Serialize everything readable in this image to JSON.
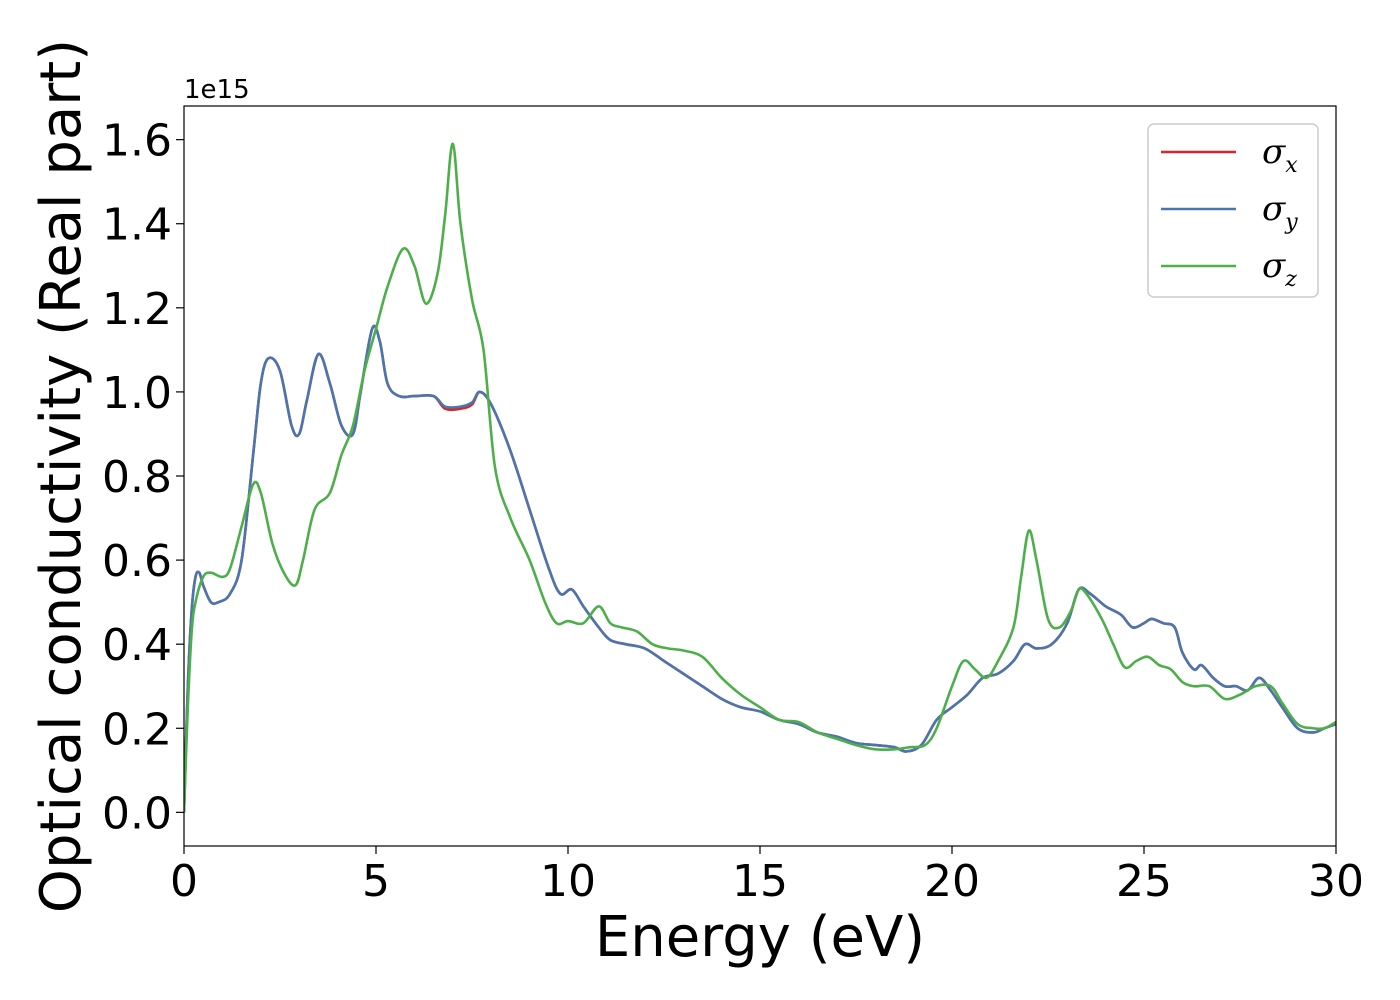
{
  "chart_data": {
    "type": "line",
    "xlabel": "Energy (eV)",
    "ylabel": "Optical conductivity (Real part)",
    "y_offset_label": "1e15",
    "xlim": [
      0,
      30
    ],
    "ylim": [
      -0.08,
      1.68
    ],
    "xticks": [
      0,
      5,
      10,
      15,
      20,
      25,
      30
    ],
    "xtick_labels": [
      "0",
      "5",
      "10",
      "15",
      "20",
      "25",
      "30"
    ],
    "yticks": [
      0.0,
      0.2,
      0.4,
      0.6,
      0.8,
      1.0,
      1.2,
      1.4,
      1.6
    ],
    "ytick_labels": [
      "0.0",
      "0.2",
      "0.4",
      "0.6",
      "0.8",
      "1.0",
      "1.2",
      "1.4",
      "1.6"
    ],
    "grid": false,
    "legend_position": "top-right",
    "series": [
      {
        "name": "σx",
        "legend_symbol": "σ",
        "legend_sub": "x",
        "color": "#d62728",
        "x": [
          0,
          0.1,
          0.2,
          0.3,
          0.4,
          0.5,
          0.7,
          0.9,
          1.2,
          1.5,
          1.8,
          2.0,
          2.2,
          2.5,
          2.8,
          3.0,
          3.2,
          3.5,
          3.8,
          4.1,
          4.4,
          4.6,
          4.9,
          5.1,
          5.3,
          5.6,
          6.0,
          6.5,
          6.8,
          7.2,
          7.5,
          7.7,
          8.0,
          8.5,
          9.0,
          9.5,
          9.8,
          10.1,
          10.4,
          10.8,
          11.1,
          11.5,
          12.0,
          12.5,
          13.0,
          13.5,
          14.0,
          14.5,
          15.0,
          15.5,
          16.0,
          16.5,
          17.0,
          17.5,
          18.0,
          18.5,
          18.8,
          19.2,
          19.6,
          20.0,
          20.4,
          20.8,
          21.2,
          21.6,
          21.9,
          22.2,
          22.6,
          23.0,
          23.3,
          23.6,
          24.0,
          24.4,
          24.7,
          25.0,
          25.2,
          25.5,
          25.8,
          26.0,
          26.3,
          26.5,
          26.8,
          27.1,
          27.4,
          27.7,
          28.0,
          28.3,
          28.6,
          29.0,
          29.4,
          29.7,
          30.0
        ],
        "values": [
          0.0,
          0.3,
          0.48,
          0.56,
          0.57,
          0.54,
          0.5,
          0.5,
          0.52,
          0.6,
          0.85,
          1.02,
          1.08,
          1.05,
          0.92,
          0.9,
          0.98,
          1.09,
          1.02,
          0.92,
          0.9,
          1.0,
          1.15,
          1.12,
          1.02,
          0.99,
          0.99,
          0.99,
          0.96,
          0.96,
          0.97,
          1.0,
          0.97,
          0.86,
          0.72,
          0.58,
          0.52,
          0.53,
          0.49,
          0.44,
          0.41,
          0.4,
          0.39,
          0.36,
          0.33,
          0.3,
          0.27,
          0.25,
          0.24,
          0.22,
          0.21,
          0.19,
          0.18,
          0.165,
          0.16,
          0.155,
          0.145,
          0.16,
          0.22,
          0.25,
          0.28,
          0.32,
          0.33,
          0.36,
          0.4,
          0.39,
          0.4,
          0.45,
          0.53,
          0.52,
          0.49,
          0.47,
          0.44,
          0.45,
          0.46,
          0.45,
          0.44,
          0.38,
          0.34,
          0.35,
          0.32,
          0.3,
          0.3,
          0.29,
          0.32,
          0.29,
          0.25,
          0.2,
          0.19,
          0.2,
          0.21
        ]
      },
      {
        "name": "σy",
        "legend_symbol": "σ",
        "legend_sub": "y",
        "color": "#4a76b0",
        "x": [
          0,
          0.1,
          0.2,
          0.3,
          0.4,
          0.5,
          0.7,
          0.9,
          1.2,
          1.5,
          1.8,
          2.0,
          2.2,
          2.5,
          2.8,
          3.0,
          3.2,
          3.5,
          3.8,
          4.1,
          4.4,
          4.6,
          4.9,
          5.1,
          5.3,
          5.6,
          6.0,
          6.5,
          6.8,
          7.2,
          7.5,
          7.7,
          8.0,
          8.5,
          9.0,
          9.5,
          9.8,
          10.1,
          10.4,
          10.8,
          11.1,
          11.5,
          12.0,
          12.5,
          13.0,
          13.5,
          14.0,
          14.5,
          15.0,
          15.5,
          16.0,
          16.5,
          17.0,
          17.5,
          18.0,
          18.5,
          18.8,
          19.2,
          19.6,
          20.0,
          20.4,
          20.8,
          21.2,
          21.6,
          21.9,
          22.2,
          22.6,
          23.0,
          23.3,
          23.6,
          24.0,
          24.4,
          24.7,
          25.0,
          25.2,
          25.5,
          25.8,
          26.0,
          26.3,
          26.5,
          26.8,
          27.1,
          27.4,
          27.7,
          28.0,
          28.3,
          28.6,
          29.0,
          29.4,
          29.7,
          30.0
        ],
        "values": [
          0.0,
          0.3,
          0.48,
          0.56,
          0.57,
          0.54,
          0.5,
          0.5,
          0.52,
          0.6,
          0.85,
          1.02,
          1.08,
          1.05,
          0.92,
          0.9,
          0.98,
          1.09,
          1.02,
          0.92,
          0.9,
          1.0,
          1.15,
          1.12,
          1.02,
          0.99,
          0.99,
          0.99,
          0.965,
          0.965,
          0.975,
          1.0,
          0.97,
          0.86,
          0.72,
          0.58,
          0.52,
          0.53,
          0.49,
          0.44,
          0.41,
          0.4,
          0.39,
          0.36,
          0.33,
          0.3,
          0.27,
          0.25,
          0.24,
          0.22,
          0.21,
          0.19,
          0.18,
          0.165,
          0.16,
          0.155,
          0.145,
          0.16,
          0.22,
          0.25,
          0.28,
          0.32,
          0.33,
          0.36,
          0.4,
          0.39,
          0.4,
          0.45,
          0.53,
          0.52,
          0.49,
          0.47,
          0.44,
          0.45,
          0.46,
          0.45,
          0.44,
          0.38,
          0.34,
          0.35,
          0.32,
          0.3,
          0.3,
          0.29,
          0.32,
          0.29,
          0.25,
          0.2,
          0.19,
          0.2,
          0.21
        ]
      },
      {
        "name": "σz",
        "legend_symbol": "σ",
        "legend_sub": "z",
        "color": "#4daf4a",
        "x": [
          0,
          0.1,
          0.2,
          0.3,
          0.5,
          0.7,
          1.0,
          1.2,
          1.5,
          1.8,
          2.0,
          2.3,
          2.6,
          2.9,
          3.1,
          3.4,
          3.8,
          4.1,
          4.4,
          4.7,
          5.0,
          5.3,
          5.7,
          6.0,
          6.3,
          6.6,
          6.8,
          7.0,
          7.2,
          7.5,
          7.8,
          8.1,
          8.5,
          9.0,
          9.4,
          9.7,
          10.0,
          10.4,
          10.8,
          11.1,
          11.4,
          11.8,
          12.2,
          12.6,
          13.0,
          13.5,
          14.0,
          14.5,
          15.0,
          15.5,
          16.0,
          16.5,
          17.0,
          17.5,
          18.0,
          18.5,
          18.9,
          19.3,
          19.6,
          20.0,
          20.3,
          20.6,
          20.9,
          21.2,
          21.6,
          21.8,
          22.0,
          22.2,
          22.5,
          22.8,
          23.1,
          23.3,
          23.5,
          23.9,
          24.2,
          24.5,
          24.8,
          25.1,
          25.4,
          25.7,
          26.0,
          26.3,
          26.7,
          27.1,
          27.5,
          27.9,
          28.3,
          28.6,
          29.0,
          29.4,
          29.7,
          30.0
        ],
        "values": [
          0.0,
          0.25,
          0.43,
          0.5,
          0.56,
          0.57,
          0.56,
          0.58,
          0.68,
          0.78,
          0.76,
          0.64,
          0.57,
          0.54,
          0.6,
          0.72,
          0.76,
          0.85,
          0.92,
          1.05,
          1.15,
          1.25,
          1.34,
          1.3,
          1.21,
          1.28,
          1.42,
          1.59,
          1.4,
          1.22,
          1.1,
          0.82,
          0.7,
          0.6,
          0.5,
          0.45,
          0.455,
          0.45,
          0.49,
          0.45,
          0.44,
          0.43,
          0.4,
          0.39,
          0.385,
          0.37,
          0.32,
          0.28,
          0.25,
          0.22,
          0.215,
          0.19,
          0.175,
          0.16,
          0.15,
          0.15,
          0.155,
          0.16,
          0.2,
          0.3,
          0.36,
          0.34,
          0.32,
          0.36,
          0.44,
          0.56,
          0.67,
          0.6,
          0.46,
          0.44,
          0.48,
          0.53,
          0.52,
          0.46,
          0.4,
          0.345,
          0.36,
          0.37,
          0.35,
          0.34,
          0.31,
          0.3,
          0.3,
          0.27,
          0.28,
          0.3,
          0.3,
          0.26,
          0.21,
          0.2,
          0.2,
          0.215
        ]
      }
    ]
  }
}
